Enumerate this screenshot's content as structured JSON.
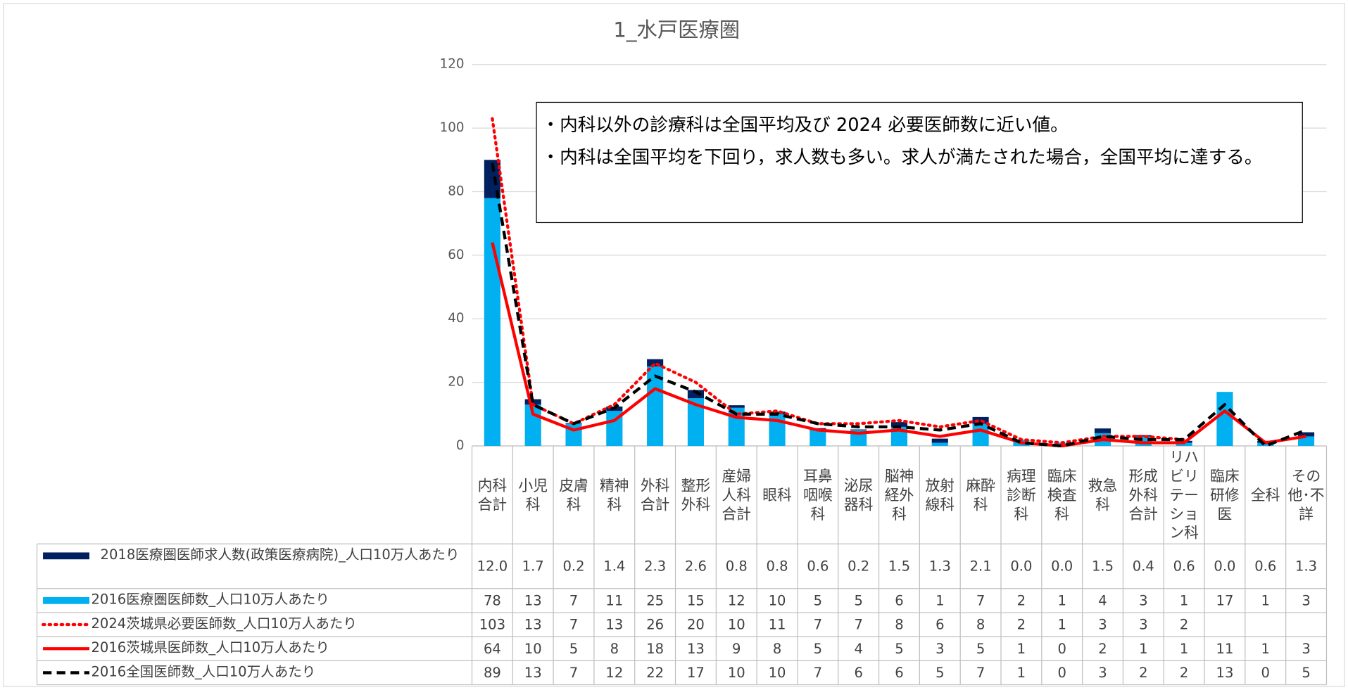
{
  "chart_data": {
    "type": "bar",
    "title": "1_水戸医療圏",
    "categories": [
      "内科合計",
      "小児科",
      "皮膚科",
      "精神科",
      "外科合計",
      "整形外科",
      "産婦人科合計",
      "眼科",
      "耳鼻咽喉科",
      "泌尿器科",
      "脳神経外科",
      "放射線科",
      "麻酔科",
      "病理診断科",
      "臨床検査科",
      "救急科",
      "形成外科合計",
      "リハビリテーション科",
      "臨床研修医",
      "全科",
      "その他･不詳"
    ],
    "series": [
      {
        "name": "2018医療圏医師求人数(政策医療病院)_人口10万人あたり",
        "kind": "bar",
        "color": "#002060",
        "values": [
          12,
          1.7,
          0.2,
          1.4,
          2.3,
          2.6,
          0.8,
          0.8,
          0.6,
          0.2,
          1.5,
          1.3,
          2.1,
          0,
          0,
          1.5,
          0.4,
          0.6,
          0,
          0.6,
          1.3
        ],
        "value_labels": [
          "12.0",
          "1.7",
          "0.2",
          "1.4",
          "2.3",
          "2.6",
          "0.8",
          "0.8",
          "0.6",
          "0.2",
          "1.5",
          "1.3",
          "2.1",
          "0.0",
          "0.0",
          "1.5",
          "0.4",
          "0.6",
          "0.0",
          "0.6",
          "1.3"
        ]
      },
      {
        "name": "2016医療圏医師数_人口10万人あたり",
        "kind": "bar",
        "color": "#00b0f0",
        "values": [
          78,
          13,
          7,
          11,
          25,
          15,
          12,
          10,
          5,
          5,
          6,
          1,
          7,
          2,
          1,
          4,
          3,
          1,
          17,
          1,
          3
        ]
      },
      {
        "name": "2024茨城県必要医師数_人口10万人あたり",
        "kind": "line",
        "dash": "dotted",
        "color": "#ff0000",
        "values": [
          103,
          13,
          7,
          13,
          26,
          20,
          10,
          11,
          7,
          7,
          8,
          6,
          8,
          2,
          1,
          3,
          3,
          2,
          null,
          null,
          null
        ]
      },
      {
        "name": "2016茨城県医師数_人口10万人あたり",
        "kind": "line",
        "dash": "solid",
        "color": "#ff0000",
        "values": [
          64,
          10,
          5,
          8,
          18,
          13,
          9,
          8,
          5,
          4,
          5,
          3,
          5,
          1,
          0,
          2,
          1,
          1,
          11,
          1,
          3
        ]
      },
      {
        "name": "2016全国医師数_人口10万人あたり",
        "kind": "line",
        "dash": "dashed",
        "color": "#000000",
        "values": [
          89,
          13,
          7,
          12,
          22,
          17,
          10,
          10,
          7,
          6,
          6,
          5,
          7,
          1,
          0,
          3,
          2,
          2,
          13,
          0,
          5
        ]
      }
    ],
    "ylim": [
      0,
      120
    ],
    "yticks": [
      0,
      20,
      40,
      60,
      80,
      100,
      120
    ],
    "grid": true,
    "annotations": [
      "・内科以外の診療科は全国平均及び 2024 必要医師数に近い値。",
      "・内科は全国平均を下回り，求人数も多い。求人が満たされた場合，全国平均に達する。"
    ]
  }
}
